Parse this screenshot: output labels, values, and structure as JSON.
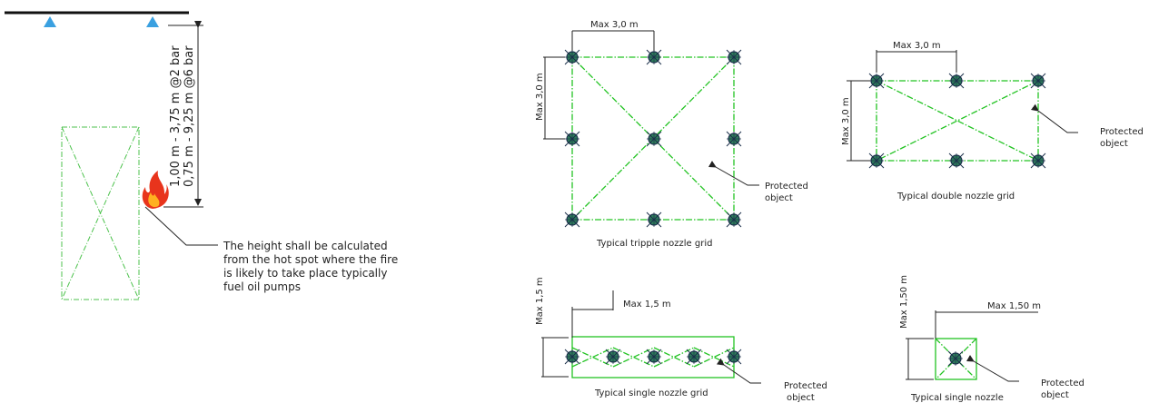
{
  "colors": {
    "grid_line": "#22c322",
    "nozzle_fill": "#2e7d5a",
    "nozzle_stroke": "#1a2f4a",
    "pipe": "#111111",
    "sprinkler": "#3aa0e0",
    "dimension": "#222222"
  },
  "side_view": {
    "height_dim_line1": "1,00 m - 3,75 m @2 bar",
    "height_dim_line2": "0,75 m - 9,25 m @6 bar",
    "note_lines": [
      "The height shall be calculated",
      "from the hot spot where the fire",
      "is likely to take place typically",
      "fuel oil pumps"
    ],
    "fire_icon": "fire-icon",
    "sprinkler_icon": "sprinkler-head-icon"
  },
  "triple_grid": {
    "caption": "Typical tripple nozzle grid",
    "dim_horizontal": "Max 3,0 m",
    "dim_vertical": "Max 3,0 m",
    "protected_object": [
      "Protected",
      "object"
    ]
  },
  "double_grid": {
    "caption": "Typical double nozzle grid",
    "dim_horizontal": "Max 3,0 m",
    "dim_vertical": "Max 3,0 m",
    "protected_object": [
      "Protected",
      "object"
    ]
  },
  "single_grid": {
    "caption": "Typical single nozzle grid",
    "dim_horizontal": "Max 1,5 m",
    "dim_vertical": "Max 1,5 m",
    "protected_object": [
      "Protected",
      "object"
    ]
  },
  "single_nozzle": {
    "caption": "Typical single nozzle",
    "dim_horizontal": "Max 1,50 m",
    "dim_vertical": "Max 1,50 m",
    "protected_object": [
      "Protected",
      "object"
    ]
  }
}
